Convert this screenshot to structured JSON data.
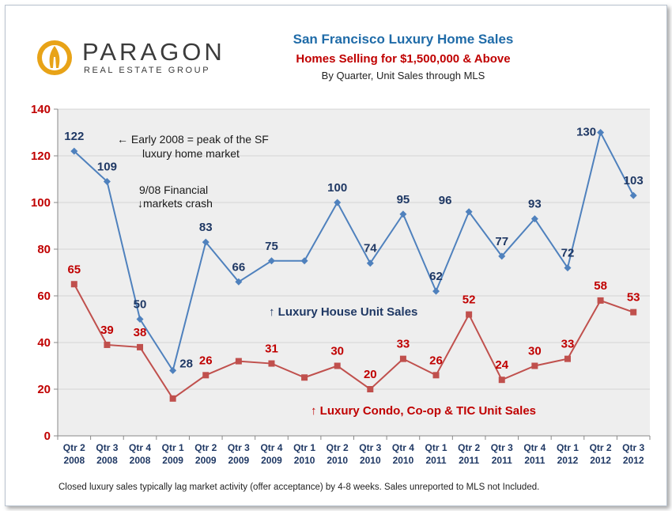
{
  "logo": {
    "name": "PARAGON",
    "subtitle": "REAL ESTATE GROUP",
    "colors": {
      "outer": "#e8a317",
      "inner": "#ffffff",
      "mark": "#e8a317"
    }
  },
  "header": {
    "title": "San Francisco Luxury Home Sales",
    "subtitle": "Homes Selling for $1,500,000 & Above",
    "subtitle2": "By Quarter, Unit Sales through MLS"
  },
  "footnote": "Closed luxury sales typically lag market activity (offer acceptance) by 4-8 weeks. Sales unreported to MLS not Included.",
  "chart_data": {
    "type": "line",
    "categories": [
      [
        "Qtr 2",
        "2008"
      ],
      [
        "Qtr 3",
        "2008"
      ],
      [
        "Qtr 4",
        "2008"
      ],
      [
        "Qtr 1",
        "2009"
      ],
      [
        "Qtr 2",
        "2009"
      ],
      [
        "Qtr 3",
        "2009"
      ],
      [
        "Qtr 4",
        "2009"
      ],
      [
        "Qtr 1",
        "2010"
      ],
      [
        "Qtr 2",
        "2010"
      ],
      [
        "Qtr 3",
        "2010"
      ],
      [
        "Qtr 4",
        "2010"
      ],
      [
        "Qtr 1",
        "2011"
      ],
      [
        "Qtr 2",
        "2011"
      ],
      [
        "Qtr 3",
        "2011"
      ],
      [
        "Qtr 4",
        "2011"
      ],
      [
        "Qtr 1",
        "2012"
      ],
      [
        "Qtr 2",
        "2012"
      ],
      [
        "Qtr 3",
        "2012"
      ]
    ],
    "series": [
      {
        "name": "↑ Luxury House Unit Sales",
        "color": "#4f81bd",
        "label_color": "#1f3864",
        "marker": "diamond",
        "values": [
          122,
          109,
          50,
          28,
          83,
          66,
          75,
          75,
          100,
          74,
          95,
          62,
          96,
          77,
          93,
          72,
          130,
          103
        ],
        "data_labels": [
          "122",
          "109",
          "50",
          "28",
          "83",
          "66",
          "75",
          "",
          "100",
          "74",
          "95",
          "62",
          "96",
          "77",
          "93",
          "72",
          "130",
          "103"
        ]
      },
      {
        "name": "↑ Luxury Condo, Co-op & TIC Unit Sales",
        "color": "#c0504d",
        "label_color": "#c00000",
        "marker": "square",
        "values": [
          65,
          39,
          38,
          16,
          26,
          32,
          31,
          25,
          30,
          20,
          33,
          26,
          52,
          24,
          30,
          33,
          58,
          53
        ],
        "data_labels": [
          "65",
          "39",
          "38",
          "",
          "26",
          "",
          "31",
          "",
          "30",
          "20",
          "33",
          "26",
          "52",
          "24",
          "30",
          "33",
          "58",
          "53"
        ]
      }
    ],
    "ylim": [
      0,
      140
    ],
    "yticks": [
      0,
      20,
      40,
      60,
      80,
      100,
      120,
      140
    ],
    "ytick_color": "#c00000",
    "plot_background": "#eeeeee",
    "grid": true,
    "annotations": [
      {
        "lines": [
          "← Early 2008 = peak of the SF",
          "luxury home market"
        ]
      },
      {
        "lines": [
          "9/08 Financial",
          "↓markets crash"
        ]
      }
    ]
  }
}
